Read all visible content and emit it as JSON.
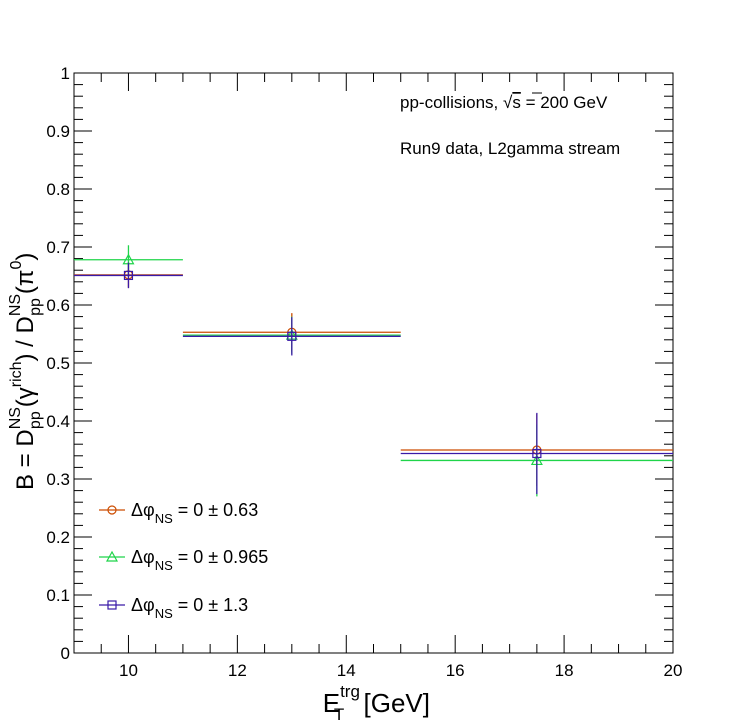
{
  "chart_data": {
    "type": "scatter",
    "title": "",
    "xlabel": {
      "main": "E",
      "sub": "T",
      "sup": "trg",
      "unit": " [GeV]"
    },
    "ylabel": {
      "prefix": "B = D",
      "sup1": "NS",
      "sub1": "pp",
      "arg1a": "(γ",
      "arg1sup": "rich",
      "arg1b": ")",
      "div": " / D",
      "sup2": "NS",
      "sub2": "pp",
      "arg2a": "(π",
      "arg2sup": "0",
      "arg2b": ")"
    },
    "xlim": [
      9,
      20
    ],
    "ylim": [
      0,
      1
    ],
    "xticks": [
      10,
      12,
      14,
      16,
      18,
      20
    ],
    "yticks": [
      0,
      0.1,
      0.2,
      0.3,
      0.4,
      0.5,
      0.6,
      0.7,
      0.8,
      0.9,
      1
    ],
    "xtick_labels": [
      "10",
      "12",
      "14",
      "16",
      "18",
      "20"
    ],
    "ytick_labels": [
      "0",
      "0.1",
      "0.2",
      "0.3",
      "0.4",
      "0.5",
      "0.6",
      "0.7",
      "0.8",
      "0.9",
      "1"
    ],
    "grid": false,
    "legend_placement": "bottom-left",
    "annotations": {
      "line1_prefix": "pp-collisions, ",
      "line1_sqrt": "√",
      "line1_s": "s",
      "line1_suffix": " = 200 GeV",
      "line2": "Run9 data, L2gamma stream"
    },
    "series": [
      {
        "name": {
          "delta": "Δφ",
          "sub": "NS",
          "rest": " = 0 ± 0.63"
        },
        "color": "#cc4c00",
        "marker": "circle",
        "points": [
          {
            "x": 10,
            "xlo": 9,
            "xhi": 11,
            "y": 0.652,
            "yerr": 0.022
          },
          {
            "x": 13,
            "xlo": 11,
            "xhi": 15,
            "y": 0.553,
            "yerr": 0.033
          },
          {
            "x": 17.5,
            "xlo": 15,
            "xhi": 20,
            "y": 0.35,
            "yerr": 0.062
          }
        ]
      },
      {
        "name": {
          "delta": "Δφ",
          "sub": "NS",
          "rest": " = 0 ± 0.965"
        },
        "color": "#1fd44a",
        "marker": "triangle",
        "points": [
          {
            "x": 10,
            "xlo": 9,
            "xhi": 11,
            "y": 0.678,
            "yerr": 0.025
          },
          {
            "x": 13,
            "xlo": 11,
            "xhi": 15,
            "y": 0.548,
            "yerr": 0.032
          },
          {
            "x": 17.5,
            "xlo": 15,
            "xhi": 20,
            "y": 0.332,
            "yerr": 0.062
          }
        ]
      },
      {
        "name": {
          "delta": "Δφ",
          "sub": "NS",
          "rest": " = 0 ± 1.3"
        },
        "color": "#3a1aa8",
        "marker": "square",
        "points": [
          {
            "x": 10,
            "xlo": 9,
            "xhi": 11,
            "y": 0.651,
            "yerr": 0.022
          },
          {
            "x": 13,
            "xlo": 11,
            "xhi": 15,
            "y": 0.546,
            "yerr": 0.033
          },
          {
            "x": 17.5,
            "xlo": 15,
            "xhi": 20,
            "y": 0.344,
            "yerr": 0.07
          }
        ]
      }
    ]
  }
}
